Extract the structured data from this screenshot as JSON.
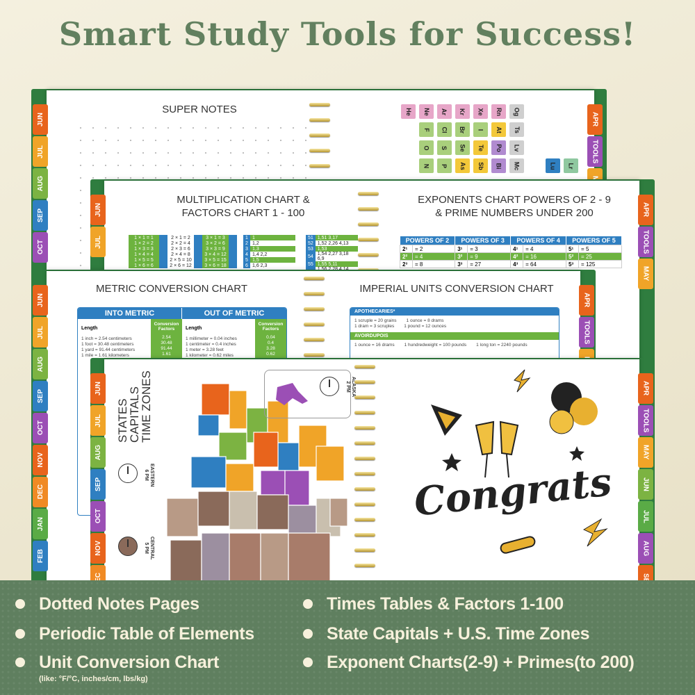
{
  "headline": "Smart Study Tools for Success!",
  "colors": {
    "brand_green": "#62805f",
    "band_green": "#5f7f5f",
    "cover_green": "#2f7d3f",
    "table_blue": "#2f7fc1",
    "table_green": "#6db33f"
  },
  "tab_colors": {
    "JUN": "#e8641c",
    "JUL": "#f0a428",
    "AUG": "#7cb342",
    "SEP": "#2f7fc1",
    "OCT": "#9b4fb5",
    "NOV": "#e8641c",
    "DEC": "#f08a24",
    "JAN": "#5aab46",
    "FEB": "#2f7fc1",
    "APR": "#e8641c",
    "TOOLS": "#9b4fb5",
    "MAY": "#f0a428"
  },
  "page1": {
    "title": "SUPER NOTES",
    "left_tabs": [
      "JUN",
      "JUL",
      "AUG",
      "SEP",
      "OCT"
    ],
    "right_tabs": [
      "APR",
      "TOOLS",
      "MAY"
    ],
    "elements": [
      [
        "He",
        "Ne",
        "Ar",
        "Kr",
        "Xe",
        "Rn",
        "Og"
      ],
      [
        "",
        "F",
        "Cl",
        "Br",
        "I",
        "At",
        "Ts"
      ],
      [
        "",
        "O",
        "S",
        "Se",
        "Te",
        "Po",
        "Lv"
      ],
      [
        "",
        "N",
        "P",
        "As",
        "Sb",
        "Bi",
        "Mc",
        "",
        "Lu",
        "Lr"
      ]
    ]
  },
  "page2": {
    "title_left": [
      "MULTIPLICATION CHART &",
      "FACTORS CHART 1 - 100"
    ],
    "title_right": [
      "EXPONENTS CHART POWERS OF 2 - 9",
      "& PRIME NUMBERS UNDER 200"
    ],
    "left_tabs": [
      "JUN",
      "JUL"
    ],
    "right_tabs": [
      "APR",
      "TOOLS",
      "MAY"
    ],
    "mult": [
      [
        "1 × 1 = 1",
        "2 × 1 = 2",
        "3 × 1 = 3"
      ],
      [
        "1 × 2 = 2",
        "2 × 2 = 4",
        "3 × 2 = 6"
      ],
      [
        "1 × 3 = 3",
        "2 × 3 = 6",
        "3 × 3 = 9"
      ],
      [
        "1 × 4 = 4",
        "2 × 4 = 8",
        "3 × 4 = 12"
      ],
      [
        "1 × 5 = 5",
        "2 × 5 = 10",
        "3 × 5 = 15"
      ],
      [
        "1 × 6 = 6",
        "2 × 6 = 12",
        "3 × 6 = 18"
      ]
    ],
    "factors_a": [
      [
        "1",
        "1"
      ],
      [
        "2",
        "1,2"
      ],
      [
        "3",
        "1,3"
      ],
      [
        "4",
        "1,4  2,2"
      ],
      [
        "5",
        "1,5"
      ],
      [
        "6",
        "1,6  2,3"
      ]
    ],
    "factors_b": [
      [
        "51",
        "1,51  3,17"
      ],
      [
        "52",
        "1,52  2,26  4,13"
      ],
      [
        "53",
        "1,53"
      ],
      [
        "54",
        "1,54  2,27  3,18  6,9"
      ],
      [
        "55",
        "1,55  5,11"
      ],
      [
        "56",
        "1,56  2,28  4,14  7,8"
      ]
    ],
    "exp_headers": [
      "POWERS OF 2",
      "POWERS OF 3",
      "POWERS OF 4",
      "POWERS OF 5"
    ],
    "exp_rows": [
      [
        "2¹",
        "= 2",
        "3¹",
        "= 3",
        "4¹",
        "= 4",
        "5¹",
        "= 5"
      ],
      [
        "2²",
        "= 4",
        "3²",
        "= 9",
        "4²",
        "= 16",
        "5²",
        "= 25"
      ],
      [
        "2³",
        "= 8",
        "3³",
        "= 27",
        "4³",
        "= 64",
        "5³",
        "= 125"
      ]
    ]
  },
  "page3": {
    "title_left": "METRIC CONVERSION CHART",
    "title_right": "IMPERIAL UNITS CONVERSION CHART",
    "left_tabs": [
      "JUN",
      "JUL",
      "AUG",
      "SEP",
      "OCT",
      "NOV",
      "DEC",
      "JAN",
      "FEB"
    ],
    "right_tabs": [
      "APR",
      "TOOLS",
      "MAY"
    ],
    "into_metric": {
      "header": "INTO METRIC",
      "section": "Length",
      "factor_head": "Conversion Factors",
      "rows": [
        "1 inch = 2.54 centimeters",
        "1 foot = 30.48 centimeters",
        "1 yard = 91.44 centimeters",
        "1 mile = 1.61 kilometers"
      ],
      "factors": [
        "2.54",
        "30.48",
        "91.44",
        "1.61"
      ]
    },
    "out_metric": {
      "header": "OUT OF METRIC",
      "section": "Length",
      "factor_head": "Conversion Factors",
      "rows": [
        "1 millimeter = 0.04 inches",
        "1 centimeter = 0.4 inches",
        "1 meter = 3.28 feet",
        "1 kilometer = 0.62 miles"
      ],
      "factors": [
        "0.04",
        "0.4",
        "3.28",
        "0.62"
      ]
    },
    "apothecaries": {
      "header": "APOTHECARIES*",
      "rows": [
        [
          "1 scruple = 20 grains",
          "1 ounce = 8 drams"
        ],
        [
          "1 dram = 3 scruples",
          "1 pound = 12 ounces"
        ]
      ]
    },
    "avoirdupois": {
      "header": "AVOIRDUPOIS",
      "rows": [
        [
          "1 ounce = 16 drams",
          "1 hundredweight = 100 pounds",
          "1 long ton = 2240 pounds"
        ]
      ]
    }
  },
  "page4": {
    "map_title": [
      "STATES",
      "CAPITALS",
      "TIME ZONES"
    ],
    "left_tabs": [
      "JUN",
      "JUL",
      "AUG",
      "SEP",
      "OCT",
      "NOV",
      "DEC"
    ],
    "right_tabs": [
      "APR",
      "TOOLS",
      "MAY",
      "JUN",
      "JUL",
      "AUG",
      "SEP"
    ],
    "clocks": [
      {
        "zone": "EASTERN",
        "time": "6 PM"
      },
      {
        "zone": "CENTRAL",
        "time": "5 PM"
      },
      {
        "zone": "ALASKA",
        "time": "2 PM"
      }
    ],
    "congrats": "Congrats"
  },
  "right_tab_colors2": {
    "JUN": "#7cb342",
    "JUL": "#5aab46",
    "AUG": "#9b4fb5",
    "SEP": "#e8641c"
  },
  "features": [
    {
      "label": "Dotted Notes Pages"
    },
    {
      "label": "Periodic Table of Elements"
    },
    {
      "label": "Unit Conversion Chart",
      "note": "(like: °F/°C, inches/cm, lbs/kg)"
    },
    {
      "label": "Times Tables & Factors 1-100"
    },
    {
      "label": "State Capitals + U.S. Time Zones"
    },
    {
      "label": "Exponent Charts(2-9) + Primes(to 200)"
    }
  ]
}
